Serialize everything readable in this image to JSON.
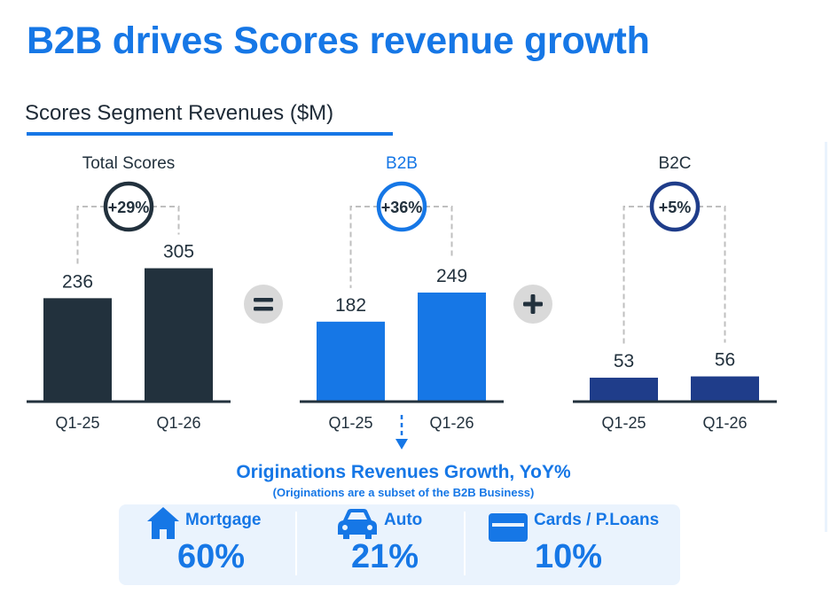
{
  "header": {
    "title": "B2B drives Scores revenue growth",
    "subtitle": "Scores Segment Revenues ($M)"
  },
  "colors": {
    "accent": "#1677e6",
    "total": "#22313d",
    "b2b": "#1677e6",
    "b2c": "#1f3d8a",
    "dashed": "#bfbfbf",
    "operator_bg": "#d9d9d9",
    "panel_bg": "#eaf3fd"
  },
  "chart_data": [
    {
      "type": "bar",
      "title": "Total Scores",
      "categories": [
        "Q1-25",
        "Q1-26"
      ],
      "values": [
        236,
        305
      ],
      "growth_label": "+29%"
    },
    {
      "type": "bar",
      "title": "B2B",
      "categories": [
        "Q1-25",
        "Q1-26"
      ],
      "values": [
        182,
        249
      ],
      "growth_label": "+36%"
    },
    {
      "type": "bar",
      "title": "B2C",
      "categories": [
        "Q1-25",
        "Q1-26"
      ],
      "values": [
        53,
        56
      ],
      "growth_label": "+5%"
    }
  ],
  "operators": [
    "equals-sign",
    "plus-sign"
  ],
  "originations": {
    "title": "Originations Revenues Growth, YoY%",
    "note": "(Originations are a subset of the B2B Business)",
    "items": [
      {
        "label": "Mortgage",
        "value": "60%",
        "icon": "house-icon"
      },
      {
        "label": "Auto",
        "value": "21%",
        "icon": "car-icon"
      },
      {
        "label": "Cards / P.Loans",
        "value": "10%",
        "icon": "credit-card-icon"
      }
    ]
  }
}
